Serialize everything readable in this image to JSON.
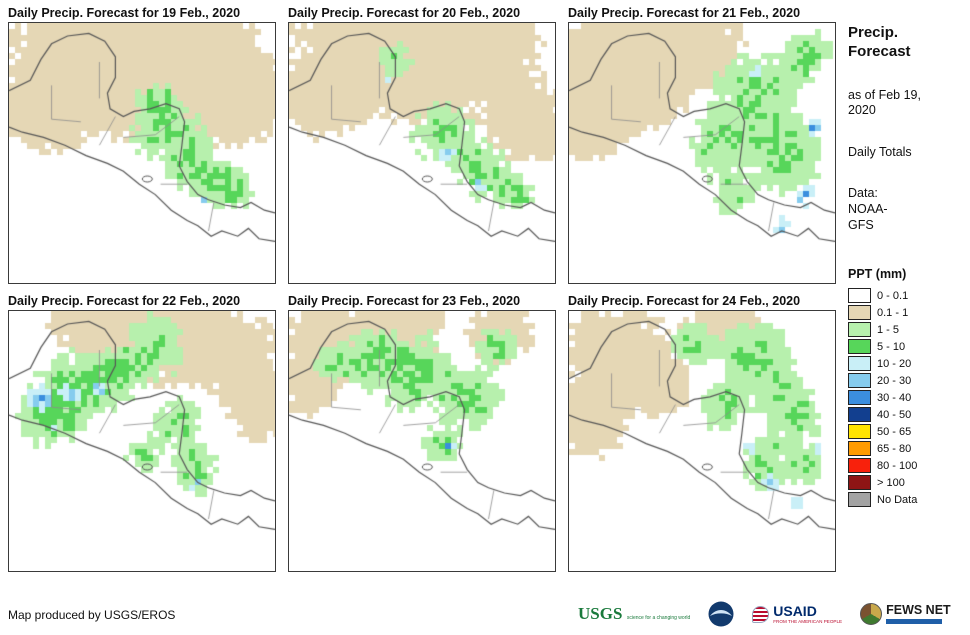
{
  "panels": [
    {
      "title": "Daily Precip. Forecast for 19 Feb., 2020"
    },
    {
      "title": "Daily Precip. Forecast for 20 Feb., 2020"
    },
    {
      "title": "Daily Precip. Forecast for 21 Feb., 2020"
    },
    {
      "title": "Daily Precip. Forecast for 22 Feb., 2020"
    },
    {
      "title": "Daily Precip. Forecast for 23 Feb., 2020"
    },
    {
      "title": "Daily Precip. Forecast for 24 Feb., 2020"
    }
  ],
  "sidebar": {
    "title": "Precip. Forecast",
    "as_of": "as of Feb 19, 2020",
    "totals": "Daily Totals",
    "source": "Data: NOAA-GFS"
  },
  "legend": {
    "title": "PPT (mm)",
    "items": [
      {
        "key": "w0",
        "label": "0 - 0.1",
        "color": "#FFFFFF"
      },
      {
        "key": "tan",
        "label": "0.1 - 1",
        "color": "#E5D7B5"
      },
      {
        "key": "g1",
        "label": "1 - 5",
        "color": "#B7F0AD"
      },
      {
        "key": "g2",
        "label": "5 - 10",
        "color": "#57D65A"
      },
      {
        "key": "b1",
        "label": "10 - 20",
        "color": "#C9EFF7"
      },
      {
        "key": "b2",
        "label": "20 - 30",
        "color": "#86CCEE"
      },
      {
        "key": "b3",
        "label": "30 - 40",
        "color": "#3B8EDE"
      },
      {
        "key": "b4",
        "label": "40 - 50",
        "color": "#123F8F"
      },
      {
        "key": "y",
        "label": "50 - 65",
        "color": "#FFE400"
      },
      {
        "key": "o",
        "label": "65 - 80",
        "color": "#FF9B00"
      },
      {
        "key": "r",
        "label": "80 - 100",
        "color": "#F8210C"
      },
      {
        "key": "dr",
        "label": "> 100",
        "color": "#8E1515"
      },
      {
        "key": "nd",
        "label": "No Data",
        "color": "#A3A3A3"
      }
    ]
  },
  "footer": {
    "credit": "Map produced by USGS/EROS",
    "logos": [
      {
        "name": "USGS",
        "tagline": "science for a changing world"
      },
      {
        "name": "NOAA"
      },
      {
        "name": "USAID",
        "tagline": "FROM THE AMERICAN PEOPLE"
      },
      {
        "name": "FEWS NET"
      }
    ]
  }
}
